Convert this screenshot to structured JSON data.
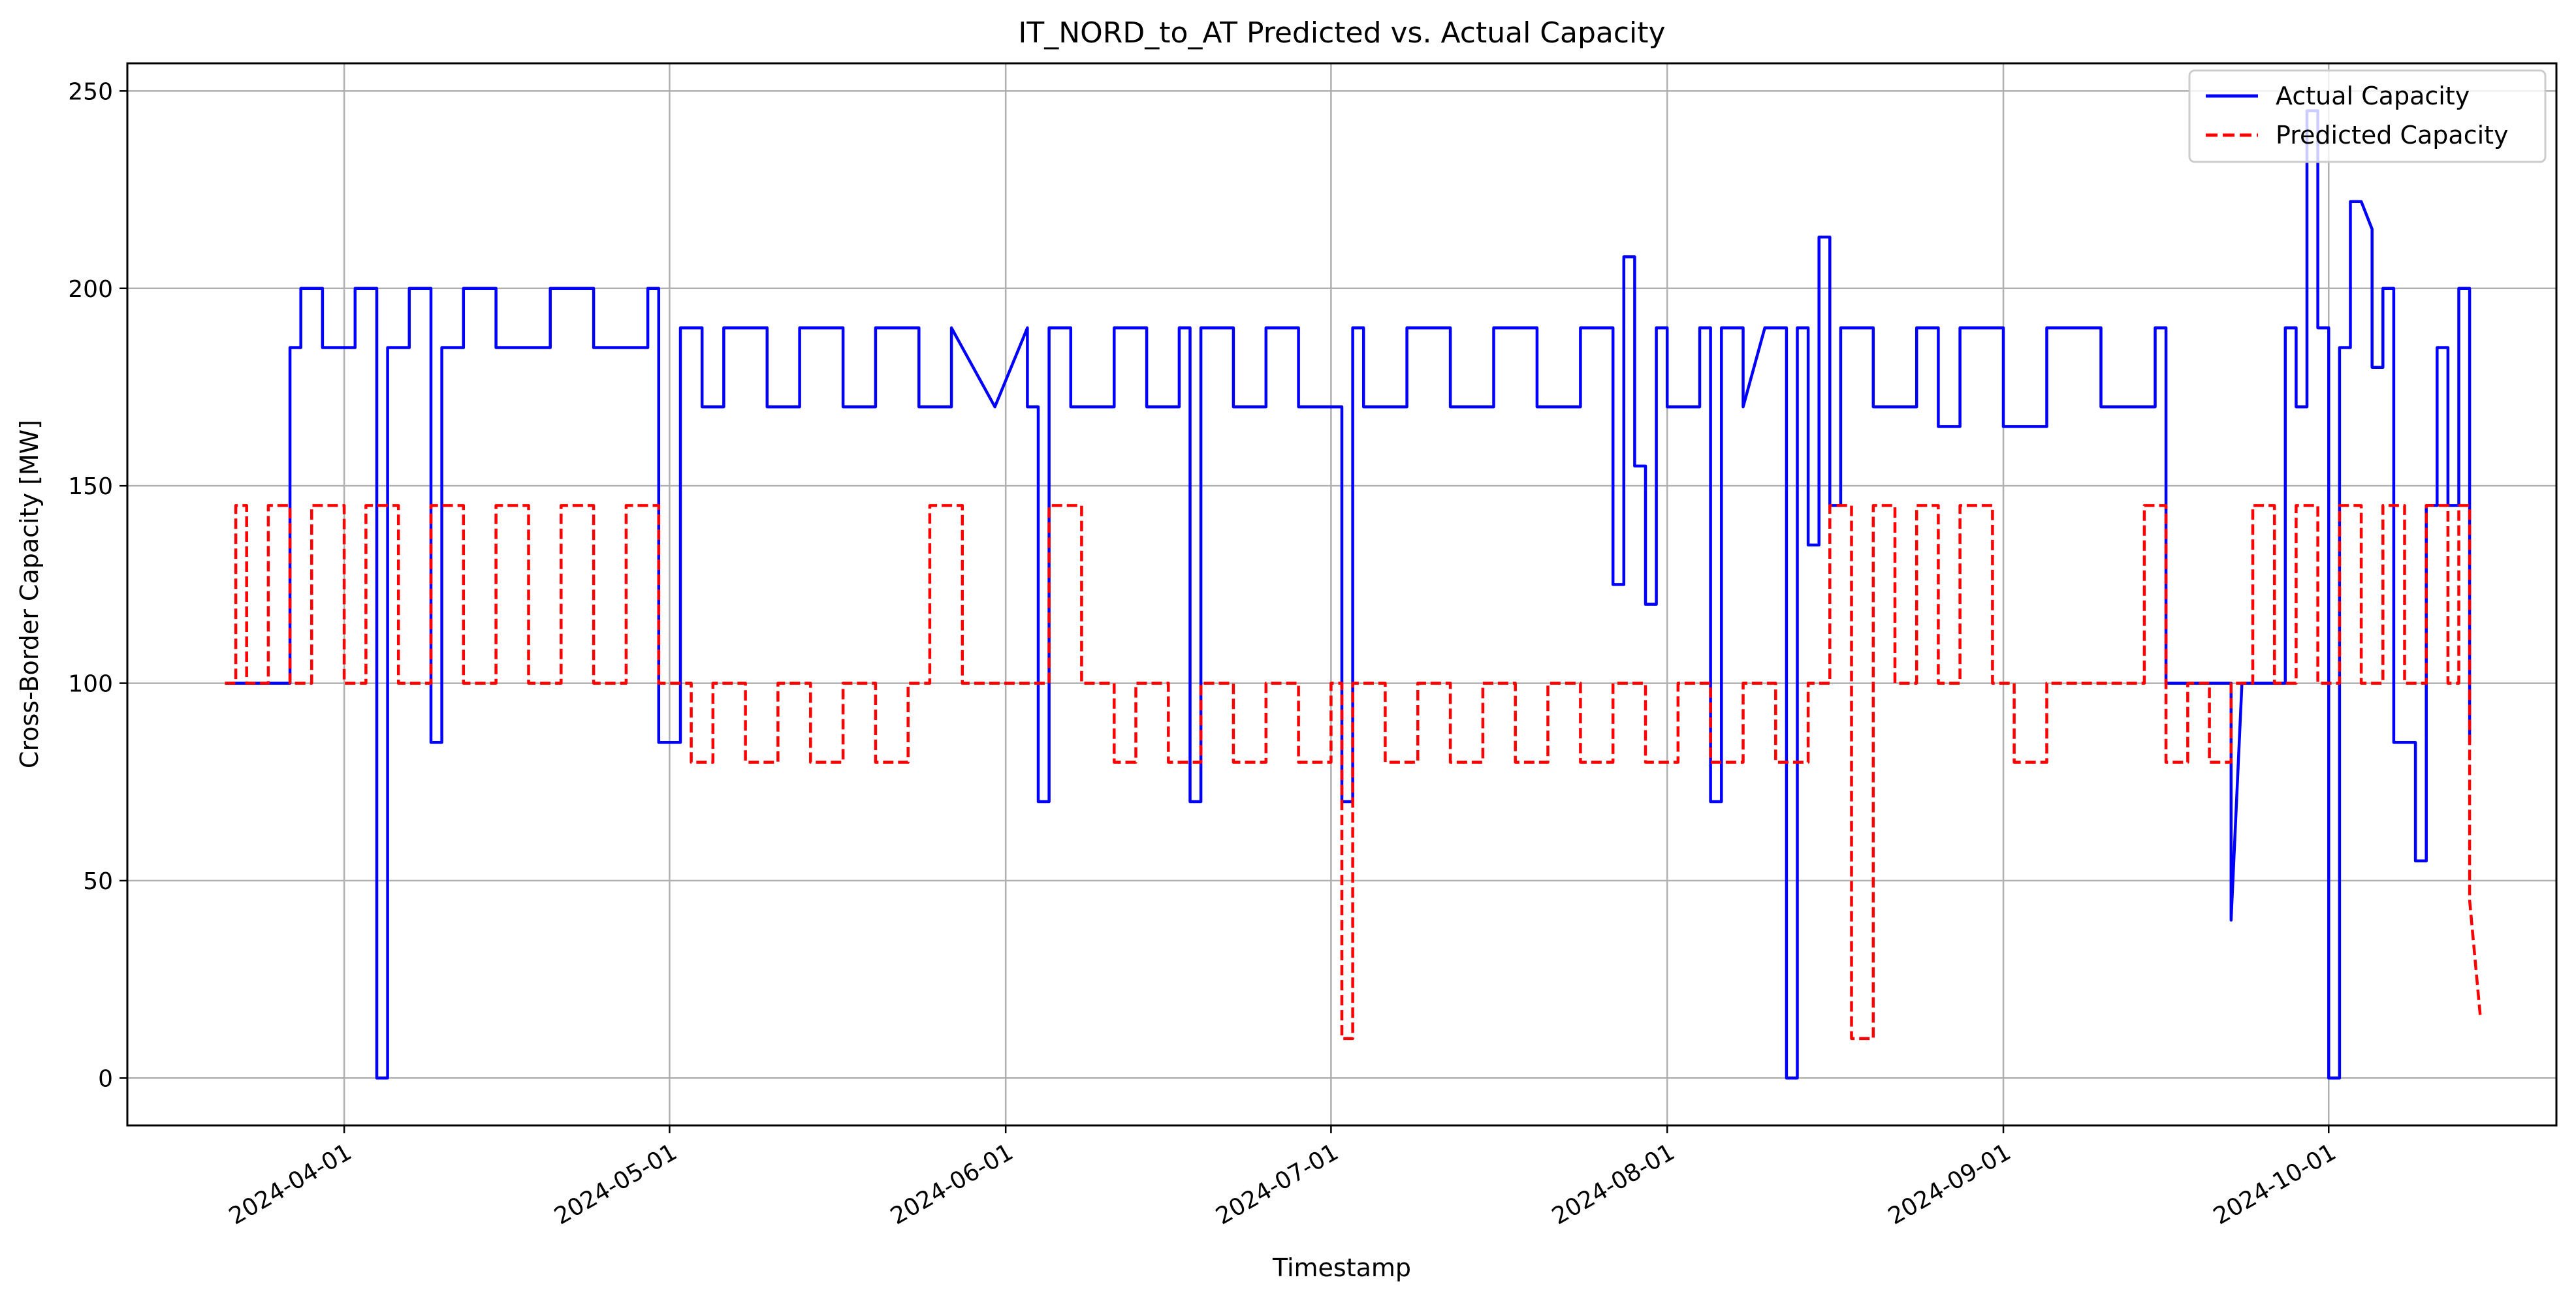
{
  "chart_data": {
    "type": "line",
    "title": "IT_NORD_to_AT Predicted vs. Actual Capacity",
    "xlabel": "Timestamp",
    "ylabel": "Cross-Border Capacity [MW]",
    "x_axis_kind": "date",
    "xlim": [
      "2024-03-12",
      "2024-10-22"
    ],
    "ylim": [
      -12,
      257
    ],
    "x_ticks": [
      "2024-04-01",
      "2024-05-01",
      "2024-06-01",
      "2024-07-01",
      "2024-08-01",
      "2024-09-01",
      "2024-10-01"
    ],
    "y_ticks": [
      0,
      50,
      100,
      150,
      200,
      250
    ],
    "grid": true,
    "legend_position": "top-right",
    "series": [
      {
        "name": "Actual Capacity",
        "color": "#0000ff",
        "line_style": "solid",
        "x": [
          "2024-03-21",
          "2024-03-27",
          "2024-03-27",
          "2024-03-28",
          "2024-03-28",
          "2024-03-30",
          "2024-03-30",
          "2024-04-02",
          "2024-04-02",
          "2024-04-04",
          "2024-04-04",
          "2024-04-04",
          "2024-04-05",
          "2024-04-05",
          "2024-04-07",
          "2024-04-07",
          "2024-04-09",
          "2024-04-09",
          "2024-04-10",
          "2024-04-10",
          "2024-04-12",
          "2024-04-12",
          "2024-04-15",
          "2024-04-15",
          "2024-04-20",
          "2024-04-20",
          "2024-04-24",
          "2024-04-24",
          "2024-04-29",
          "2024-04-29",
          "2024-04-30",
          "2024-04-30",
          "2024-05-02",
          "2024-05-02",
          "2024-05-04",
          "2024-05-04",
          "2024-05-06",
          "2024-05-06",
          "2024-05-10",
          "2024-05-10",
          "2024-05-13",
          "2024-05-13",
          "2024-05-17",
          "2024-05-17",
          "2024-05-20",
          "2024-05-20",
          "2024-05-24",
          "2024-05-24",
          "2024-05-27",
          "2024-05-27",
          "2024-05-31",
          "2024-06-03",
          "2024-06-03",
          "2024-06-04",
          "2024-06-04",
          "2024-06-05",
          "2024-06-05",
          "2024-06-07",
          "2024-06-07",
          "2024-06-11",
          "2024-06-11",
          "2024-06-14",
          "2024-06-14",
          "2024-06-17",
          "2024-06-17",
          "2024-06-18",
          "2024-06-18",
          "2024-06-19",
          "2024-06-19",
          "2024-06-22",
          "2024-06-22",
          "2024-06-25",
          "2024-06-25",
          "2024-06-28",
          "2024-06-28",
          "2024-07-02",
          "2024-07-02",
          "2024-07-03",
          "2024-07-03",
          "2024-07-04",
          "2024-07-04",
          "2024-07-08",
          "2024-07-08",
          "2024-07-12",
          "2024-07-12",
          "2024-07-16",
          "2024-07-16",
          "2024-07-20",
          "2024-07-20",
          "2024-07-24",
          "2024-07-24",
          "2024-07-27",
          "2024-07-27",
          "2024-07-28",
          "2024-07-28",
          "2024-07-29",
          "2024-07-29",
          "2024-07-30",
          "2024-07-30",
          "2024-07-31",
          "2024-07-31",
          "2024-08-01",
          "2024-08-01",
          "2024-08-04",
          "2024-08-04",
          "2024-08-05",
          "2024-08-05",
          "2024-08-06",
          "2024-08-06",
          "2024-08-08",
          "2024-08-08",
          "2024-08-10",
          "2024-08-12",
          "2024-08-12",
          "2024-08-13",
          "2024-08-13",
          "2024-08-14",
          "2024-08-14",
          "2024-08-15",
          "2024-08-15",
          "2024-08-16",
          "2024-08-16",
          "2024-08-17",
          "2024-08-17",
          "2024-08-20",
          "2024-08-20",
          "2024-08-24",
          "2024-08-24",
          "2024-08-26",
          "2024-08-26",
          "2024-08-28",
          "2024-08-28",
          "2024-09-01",
          "2024-09-01",
          "2024-09-05",
          "2024-09-05",
          "2024-09-10",
          "2024-09-10",
          "2024-09-15",
          "2024-09-15",
          "2024-09-16",
          "2024-09-16",
          "2024-09-22",
          "2024-09-22",
          "2024-09-23",
          "2024-09-27",
          "2024-09-27",
          "2024-09-28",
          "2024-09-28",
          "2024-09-29",
          "2024-09-29",
          "2024-09-30",
          "2024-09-30",
          "2024-10-01",
          "2024-10-01",
          "2024-10-02",
          "2024-10-02",
          "2024-10-03",
          "2024-10-03",
          "2024-10-04",
          "2024-10-05",
          "2024-10-05",
          "2024-10-06",
          "2024-10-06",
          "2024-10-07",
          "2024-10-07",
          "2024-10-08",
          "2024-10-08",
          "2024-10-09",
          "2024-10-09",
          "2024-10-10",
          "2024-10-10",
          "2024-10-11",
          "2024-10-11",
          "2024-10-12",
          "2024-10-12",
          "2024-10-13",
          "2024-10-13",
          "2024-10-14",
          "2024-10-14"
        ],
        "y": [
          100,
          100,
          185,
          185,
          200,
          200,
          185,
          185,
          200,
          200,
          185,
          0,
          0,
          185,
          185,
          200,
          200,
          85,
          85,
          185,
          185,
          200,
          200,
          185,
          185,
          200,
          200,
          185,
          185,
          200,
          200,
          85,
          85,
          190,
          190,
          170,
          170,
          190,
          190,
          170,
          170,
          190,
          190,
          170,
          170,
          190,
          190,
          170,
          170,
          190,
          170,
          190,
          170,
          170,
          70,
          70,
          190,
          190,
          170,
          170,
          190,
          190,
          170,
          170,
          190,
          190,
          70,
          70,
          190,
          190,
          170,
          170,
          190,
          190,
          170,
          170,
          70,
          70,
          190,
          190,
          170,
          170,
          190,
          190,
          170,
          170,
          190,
          190,
          170,
          170,
          190,
          190,
          125,
          125,
          208,
          208,
          155,
          155,
          120,
          120,
          190,
          190,
          170,
          170,
          190,
          190,
          70,
          70,
          190,
          190,
          170,
          190,
          190,
          0,
          0,
          190,
          190,
          135,
          135,
          213,
          213,
          145,
          145,
          190,
          190,
          170,
          170,
          190,
          190,
          165,
          165,
          190,
          190,
          165,
          165,
          190,
          190,
          170,
          170,
          190,
          190,
          100,
          100,
          40,
          100,
          100,
          190,
          190,
          170,
          170,
          245,
          245,
          190,
          190,
          0,
          0,
          185,
          185,
          222,
          222,
          215,
          180,
          180,
          200,
          200,
          85,
          85,
          85,
          85,
          55,
          55,
          145,
          145,
          185,
          185,
          145,
          145,
          200,
          200,
          85
        ]
      },
      {
        "name": "Predicted Capacity",
        "color": "#ff0000",
        "line_style": "dashed",
        "x": [
          "2024-03-21",
          "2024-03-22",
          "2024-03-22",
          "2024-03-23",
          "2024-03-23",
          "2024-03-25",
          "2024-03-25",
          "2024-03-27",
          "2024-03-27",
          "2024-03-29",
          "2024-03-29",
          "2024-04-01",
          "2024-04-01",
          "2024-04-03",
          "2024-04-03",
          "2024-04-06",
          "2024-04-06",
          "2024-04-09",
          "2024-04-09",
          "2024-04-12",
          "2024-04-12",
          "2024-04-15",
          "2024-04-15",
          "2024-04-18",
          "2024-04-18",
          "2024-04-21",
          "2024-04-21",
          "2024-04-24",
          "2024-04-24",
          "2024-04-27",
          "2024-04-27",
          "2024-04-30",
          "2024-04-30",
          "2024-05-03",
          "2024-05-03",
          "2024-05-05",
          "2024-05-05",
          "2024-05-08",
          "2024-05-08",
          "2024-05-11",
          "2024-05-11",
          "2024-05-14",
          "2024-05-14",
          "2024-05-17",
          "2024-05-17",
          "2024-05-20",
          "2024-05-20",
          "2024-05-23",
          "2024-05-23",
          "2024-05-25",
          "2024-05-25",
          "2024-05-28",
          "2024-05-28",
          "2024-05-31",
          "2024-05-31",
          "2024-06-05",
          "2024-06-05",
          "2024-06-08",
          "2024-06-08",
          "2024-06-11",
          "2024-06-11",
          "2024-06-13",
          "2024-06-13",
          "2024-06-16",
          "2024-06-16",
          "2024-06-19",
          "2024-06-19",
          "2024-06-22",
          "2024-06-22",
          "2024-06-25",
          "2024-06-25",
          "2024-06-28",
          "2024-06-28",
          "2024-07-01",
          "2024-07-01",
          "2024-07-02",
          "2024-07-02",
          "2024-07-03",
          "2024-07-03",
          "2024-07-06",
          "2024-07-06",
          "2024-07-09",
          "2024-07-09",
          "2024-07-12",
          "2024-07-12",
          "2024-07-15",
          "2024-07-15",
          "2024-07-18",
          "2024-07-18",
          "2024-07-21",
          "2024-07-21",
          "2024-07-24",
          "2024-07-24",
          "2024-07-27",
          "2024-07-27",
          "2024-07-30",
          "2024-07-30",
          "2024-08-02",
          "2024-08-02",
          "2024-08-05",
          "2024-08-05",
          "2024-08-08",
          "2024-08-08",
          "2024-08-11",
          "2024-08-11",
          "2024-08-14",
          "2024-08-14",
          "2024-08-16",
          "2024-08-16",
          "2024-08-18",
          "2024-08-18",
          "2024-08-20",
          "2024-08-20",
          "2024-08-22",
          "2024-08-22",
          "2024-08-24",
          "2024-08-24",
          "2024-08-26",
          "2024-08-26",
          "2024-08-28",
          "2024-08-28",
          "2024-08-31",
          "2024-08-31",
          "2024-09-02",
          "2024-09-02",
          "2024-09-05",
          "2024-09-05",
          "2024-09-08",
          "2024-09-08",
          "2024-09-11",
          "2024-09-11",
          "2024-09-14",
          "2024-09-14",
          "2024-09-16",
          "2024-09-16",
          "2024-09-18",
          "2024-09-18",
          "2024-09-20",
          "2024-09-20",
          "2024-09-22",
          "2024-09-22",
          "2024-09-24",
          "2024-09-24",
          "2024-09-26",
          "2024-09-26",
          "2024-09-28",
          "2024-09-28",
          "2024-09-30",
          "2024-09-30",
          "2024-10-02",
          "2024-10-02",
          "2024-10-04",
          "2024-10-04",
          "2024-10-06",
          "2024-10-06",
          "2024-10-08",
          "2024-10-08",
          "2024-10-10",
          "2024-10-10",
          "2024-10-12",
          "2024-10-12",
          "2024-10-13",
          "2024-10-13",
          "2024-10-14",
          "2024-10-14",
          "2024-10-15"
        ],
        "y": [
          100,
          100,
          145,
          145,
          100,
          100,
          145,
          145,
          100,
          100,
          145,
          145,
          100,
          100,
          145,
          145,
          100,
          100,
          145,
          145,
          100,
          100,
          145,
          145,
          100,
          100,
          145,
          145,
          100,
          100,
          145,
          145,
          100,
          100,
          80,
          80,
          100,
          100,
          80,
          80,
          100,
          100,
          80,
          80,
          100,
          100,
          80,
          80,
          100,
          100,
          145,
          145,
          100,
          100,
          100,
          100,
          145,
          145,
          100,
          100,
          80,
          80,
          100,
          100,
          80,
          80,
          100,
          100,
          80,
          80,
          100,
          100,
          80,
          80,
          100,
          100,
          10,
          10,
          100,
          100,
          80,
          80,
          100,
          100,
          80,
          80,
          100,
          100,
          80,
          80,
          100,
          100,
          80,
          80,
          100,
          100,
          80,
          80,
          100,
          100,
          80,
          80,
          100,
          100,
          80,
          80,
          100,
          100,
          145,
          145,
          10,
          10,
          145,
          145,
          100,
          100,
          145,
          145,
          100,
          100,
          145,
          145,
          100,
          100,
          80,
          80,
          100,
          100,
          100,
          100,
          100,
          100,
          145,
          145,
          80,
          80,
          100,
          100,
          80,
          80,
          100,
          100,
          145,
          145,
          100,
          100,
          145,
          145,
          100,
          100,
          145,
          145,
          100,
          100,
          145,
          145,
          100,
          100,
          145,
          145,
          100,
          100,
          145,
          145,
          45,
          15
        ]
      }
    ]
  }
}
